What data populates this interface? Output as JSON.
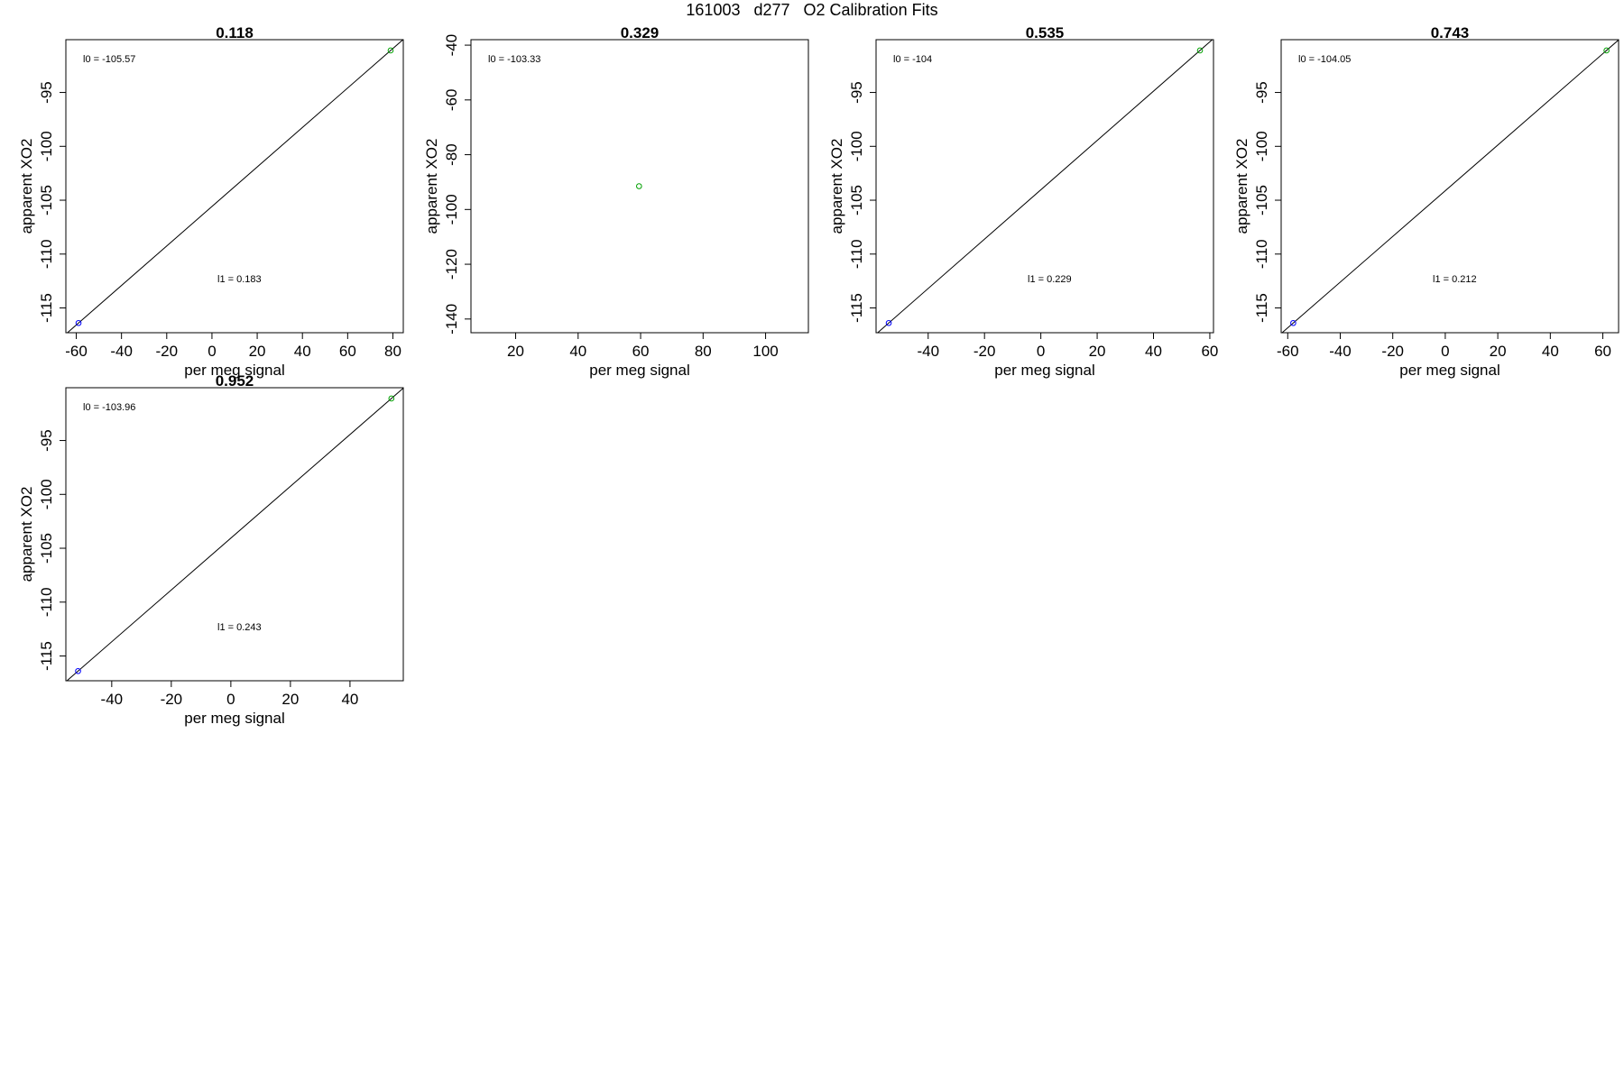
{
  "figure": {
    "title": "161003   d277   O2 Calibration Fits"
  },
  "chart_data": [
    {
      "type": "scatter",
      "title": "0.118",
      "xlabel": "per meg signal",
      "ylabel": "apparent XO2",
      "xlim": [
        -64.6,
        84.6
      ],
      "ylim": [
        -117.3,
        -90.1
      ],
      "xticks": [
        -60,
        -40,
        -20,
        0,
        20,
        40,
        60,
        80
      ],
      "yticks": [
        -95,
        -100,
        -105,
        -110,
        -115
      ],
      "points": [
        {
          "x": -59.0,
          "y": -116.4,
          "color": "#0000ff"
        },
        {
          "x": 79.0,
          "y": -91.1,
          "color": "#00a000"
        }
      ],
      "fit_line": true,
      "annotations": {
        "l0": "l0 =  -105.57",
        "l1": "l1 =  0.183"
      }
    },
    {
      "type": "scatter",
      "title": "0.329",
      "xlabel": "per meg signal",
      "ylabel": "apparent XO2",
      "xlim": [
        5.7,
        113.7
      ],
      "ylim": [
        -145,
        -38
      ],
      "xticks": [
        20,
        40,
        60,
        80,
        100
      ],
      "yticks": [
        -40,
        -60,
        -80,
        -100,
        -120,
        -140
      ],
      "points": [
        {
          "x": 59.5,
          "y": -91.5,
          "color": "#00a000"
        }
      ],
      "fit_line": false,
      "annotations": {
        "l0": "l0 =  -103.33",
        "l1": ""
      }
    },
    {
      "type": "scatter",
      "title": "0.535",
      "xlabel": "per meg signal",
      "ylabel": "apparent XO2",
      "xlim": [
        -58.5,
        61.3
      ],
      "ylim": [
        -117.3,
        -90.1
      ],
      "xticks": [
        -40,
        -20,
        0,
        20,
        40,
        60
      ],
      "yticks": [
        -95,
        -100,
        -105,
        -110,
        -115
      ],
      "points": [
        {
          "x": -54.0,
          "y": -116.4,
          "color": "#0000ff"
        },
        {
          "x": 56.5,
          "y": -91.1,
          "color": "#00a000"
        }
      ],
      "fit_line": true,
      "annotations": {
        "l0": "l0 =  -104",
        "l1": "l1 =  0.229"
      }
    },
    {
      "type": "scatter",
      "title": "0.743",
      "xlabel": "per meg signal",
      "ylabel": "apparent XO2",
      "xlim": [
        -62.5,
        66.0
      ],
      "ylim": [
        -117.3,
        -90.1
      ],
      "xticks": [
        -60,
        -40,
        -20,
        0,
        20,
        40,
        60
      ],
      "yticks": [
        -95,
        -100,
        -105,
        -110,
        -115
      ],
      "points": [
        {
          "x": -57.9,
          "y": -116.4,
          "color": "#0000ff"
        },
        {
          "x": 61.4,
          "y": -91.1,
          "color": "#00a000"
        }
      ],
      "fit_line": true,
      "annotations": {
        "l0": "l0 =  -104.05",
        "l1": "l1 =  0.212"
      }
    },
    {
      "type": "scatter",
      "title": "0.952",
      "xlabel": "per meg signal",
      "ylabel": "apparent XO2",
      "xlim": [
        -55.4,
        57.9
      ],
      "ylim": [
        -117.3,
        -90.1
      ],
      "xticks": [
        -40,
        -20,
        0,
        20,
        40
      ],
      "yticks": [
        -95,
        -100,
        -105,
        -110,
        -115
      ],
      "points": [
        {
          "x": -51.3,
          "y": -116.4,
          "color": "#0000ff"
        },
        {
          "x": 53.9,
          "y": -91.1,
          "color": "#00a000"
        }
      ],
      "fit_line": true,
      "annotations": {
        "l0": "l0 =  -103.96",
        "l1": "l1 =  0.243"
      }
    }
  ]
}
